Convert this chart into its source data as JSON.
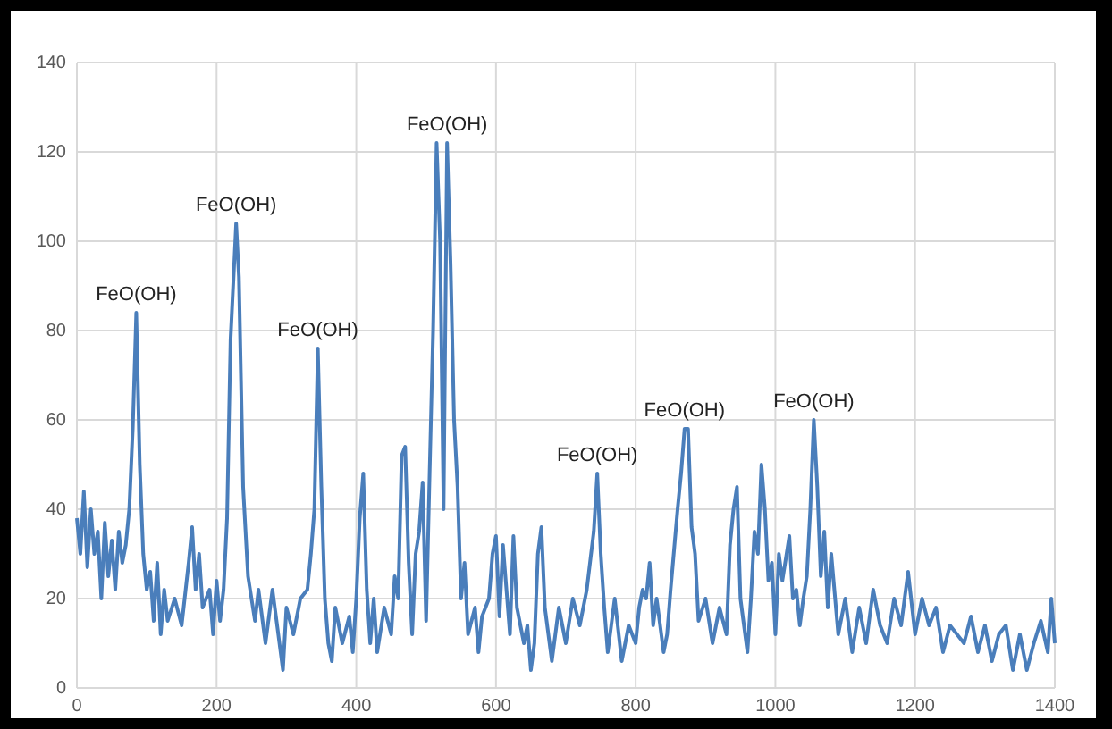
{
  "chart_data": {
    "type": "line",
    "xlim": [
      0,
      1400
    ],
    "ylim": [
      0,
      140
    ],
    "xticks": [
      0,
      200,
      400,
      600,
      800,
      1000,
      1200,
      1400
    ],
    "yticks": [
      0,
      20,
      40,
      60,
      80,
      100,
      120,
      140
    ],
    "grid": true,
    "marker": "none",
    "line_style": "solid",
    "series": [
      {
        "color": "#4a7ebb",
        "x": [
          0,
          5,
          10,
          15,
          20,
          25,
          30,
          35,
          40,
          45,
          50,
          55,
          60,
          65,
          70,
          75,
          80,
          85,
          90,
          95,
          100,
          105,
          110,
          115,
          120,
          125,
          130,
          140,
          150,
          160,
          165,
          170,
          175,
          180,
          190,
          195,
          200,
          205,
          210,
          215,
          220,
          228,
          232,
          238,
          245,
          255,
          260,
          270,
          280,
          290,
          295,
          300,
          310,
          320,
          330,
          335,
          340,
          345,
          350,
          355,
          360,
          365,
          370,
          380,
          390,
          395,
          400,
          405,
          410,
          415,
          420,
          425,
          430,
          440,
          450,
          455,
          460,
          465,
          470,
          475,
          480,
          485,
          490,
          495,
          500,
          505,
          510,
          515,
          520,
          525,
          530,
          535,
          540,
          545,
          550,
          555,
          560,
          570,
          575,
          580,
          590,
          595,
          600,
          605,
          610,
          620,
          625,
          630,
          640,
          645,
          650,
          655,
          660,
          665,
          670,
          680,
          690,
          700,
          710,
          720,
          730,
          740,
          745,
          750,
          755,
          760,
          770,
          780,
          790,
          800,
          805,
          810,
          815,
          820,
          825,
          830,
          835,
          840,
          845,
          850,
          860,
          865,
          870,
          875,
          880,
          885,
          890,
          900,
          910,
          920,
          930,
          935,
          940,
          945,
          950,
          960,
          965,
          970,
          975,
          980,
          985,
          990,
          995,
          1000,
          1005,
          1010,
          1020,
          1025,
          1030,
          1035,
          1040,
          1045,
          1050,
          1055,
          1060,
          1065,
          1070,
          1075,
          1080,
          1090,
          1100,
          1110,
          1120,
          1130,
          1140,
          1150,
          1160,
          1170,
          1180,
          1190,
          1200,
          1210,
          1220,
          1230,
          1240,
          1250,
          1260,
          1270,
          1280,
          1290,
          1300,
          1310,
          1320,
          1330,
          1340,
          1350,
          1360,
          1370,
          1380,
          1390,
          1395,
          1400
        ],
        "values": [
          38,
          30,
          44,
          27,
          40,
          30,
          35,
          20,
          37,
          25,
          33,
          22,
          35,
          28,
          32,
          40,
          58,
          84,
          50,
          30,
          22,
          26,
          15,
          28,
          12,
          22,
          15,
          20,
          14,
          28,
          36,
          22,
          30,
          18,
          22,
          12,
          24,
          15,
          22,
          38,
          78,
          104,
          92,
          45,
          25,
          15,
          22,
          10,
          22,
          10,
          4,
          18,
          12,
          20,
          22,
          30,
          40,
          76,
          45,
          20,
          10,
          6,
          18,
          10,
          16,
          8,
          20,
          38,
          48,
          22,
          10,
          20,
          8,
          18,
          12,
          25,
          20,
          52,
          54,
          28,
          12,
          30,
          35,
          46,
          15,
          48,
          80,
          122,
          100,
          40,
          122,
          95,
          60,
          45,
          20,
          28,
          12,
          18,
          8,
          16,
          20,
          30,
          34,
          16,
          32,
          12,
          34,
          18,
          10,
          14,
          4,
          10,
          30,
          36,
          18,
          6,
          18,
          10,
          20,
          14,
          22,
          35,
          48,
          30,
          18,
          8,
          20,
          6,
          14,
          10,
          18,
          22,
          20,
          28,
          14,
          20,
          14,
          8,
          12,
          22,
          40,
          48,
          58,
          58,
          36,
          30,
          15,
          20,
          10,
          18,
          12,
          32,
          40,
          45,
          20,
          8,
          20,
          35,
          30,
          50,
          40,
          24,
          28,
          12,
          30,
          24,
          34,
          20,
          22,
          14,
          20,
          25,
          40,
          60,
          45,
          25,
          35,
          18,
          30,
          12,
          20,
          8,
          18,
          10,
          22,
          14,
          10,
          20,
          14,
          26,
          12,
          20,
          14,
          18,
          8,
          14,
          12,
          10,
          16,
          8,
          14,
          6,
          12,
          14,
          4,
          12,
          4,
          10,
          15,
          8,
          20,
          10
        ]
      }
    ],
    "annotations": [
      {
        "text": "FeO(OH)",
        "x": 85,
        "y": 84
      },
      {
        "text": "FeO(OH)",
        "x": 228,
        "y": 104
      },
      {
        "text": "FeO(OH)",
        "x": 345,
        "y": 76
      },
      {
        "text": "FeO(OH)",
        "x": 530,
        "y": 122
      },
      {
        "text": "FeO(OH)",
        "x": 745,
        "y": 48
      },
      {
        "text": "FeO(OH)",
        "x": 870,
        "y": 58
      },
      {
        "text": "FeO(OH)",
        "x": 1055,
        "y": 60
      }
    ]
  }
}
